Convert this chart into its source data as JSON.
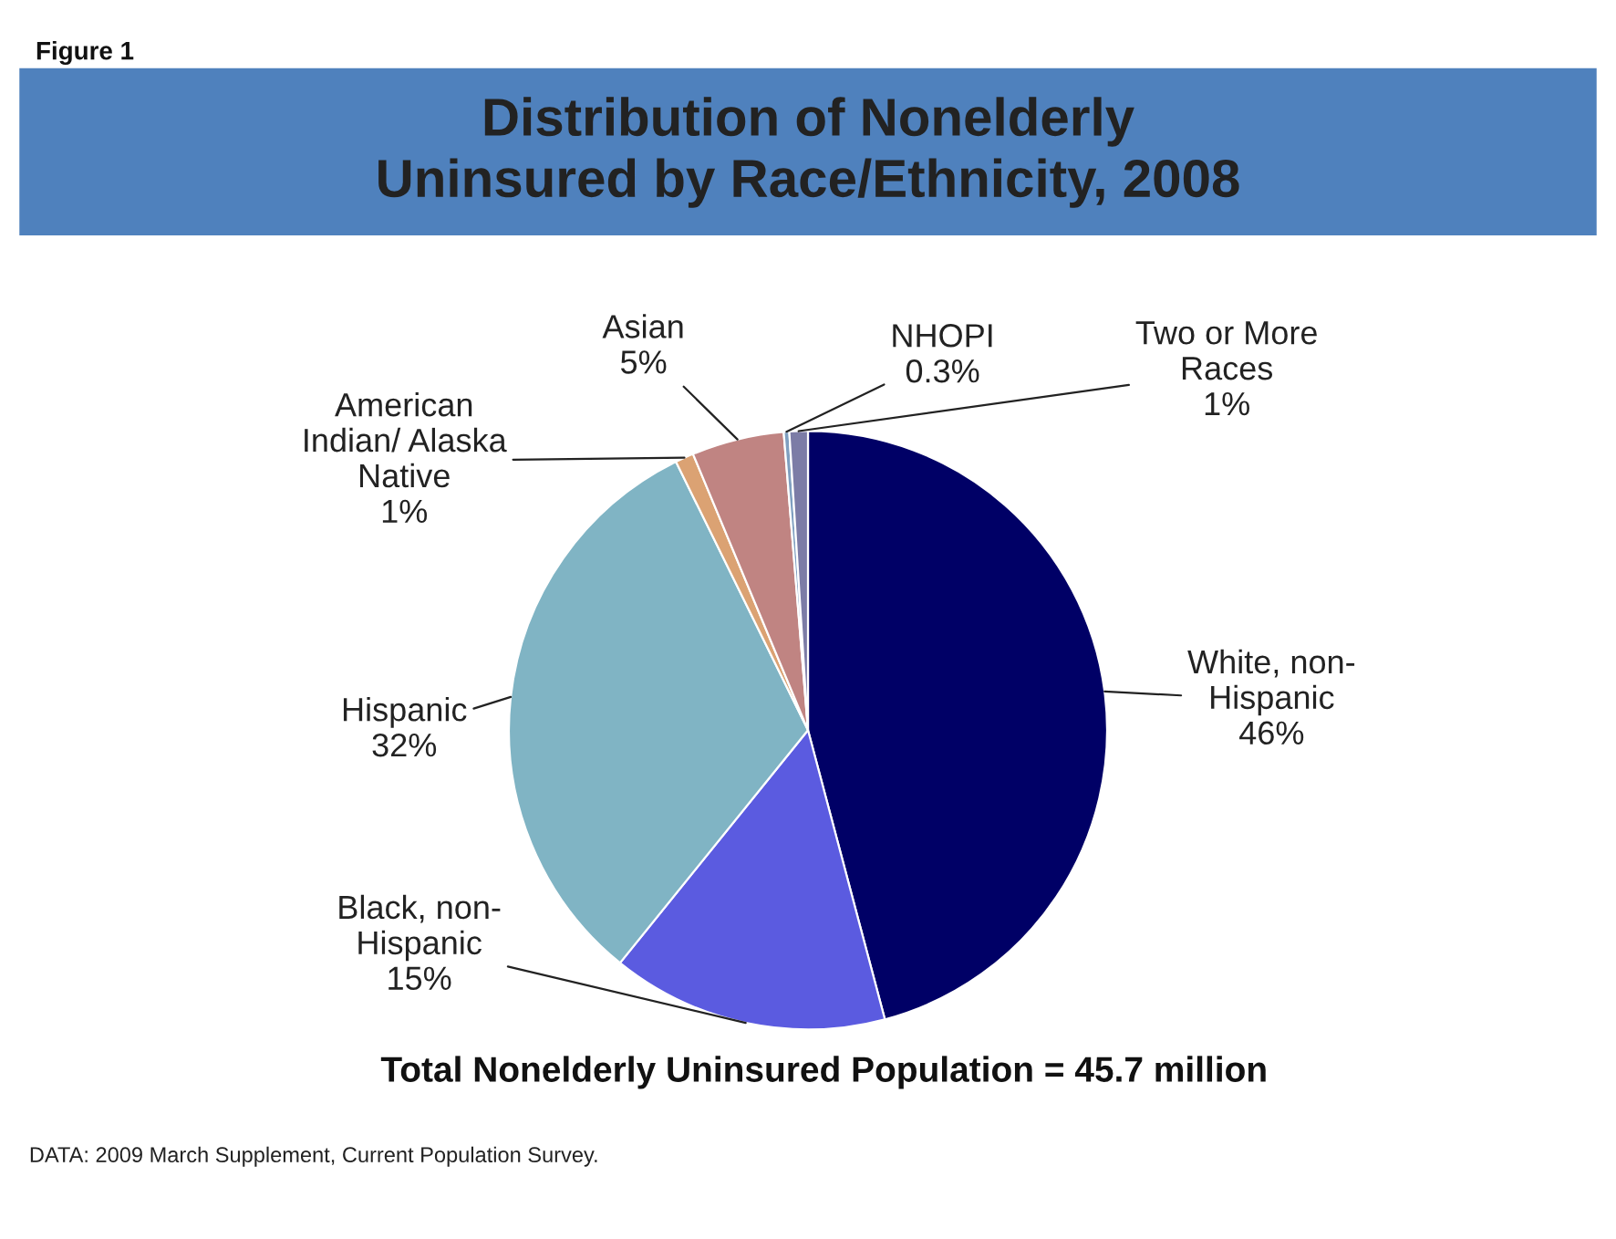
{
  "chart_data": {
    "type": "pie",
    "title": "Distribution of Nonelderly Uninsured by Race/Ethnicity, 2008",
    "categories": [
      "White, non-Hispanic",
      "Black, non-Hispanic",
      "Hispanic",
      "American Indian/ Alaska Native",
      "Asian",
      "NHOPI",
      "Two or More Races"
    ],
    "values": [
      46,
      15,
      32,
      1,
      5,
      0.3,
      1
    ],
    "value_labels": [
      "46%",
      "15%",
      "32%",
      "1%",
      "5%",
      "0.3%",
      "1%"
    ],
    "colors": [
      "#000066",
      "#5b5be0",
      "#80b4c4",
      "#dba273",
      "#c08482",
      "#7f9fc0",
      "#7c7ca6"
    ],
    "annotations": [
      "Figure 1",
      "Total Nonelderly Uninsured Population = 45.7 million",
      "DATA: 2009 March Supplement, Current Population Survey."
    ]
  }
}
